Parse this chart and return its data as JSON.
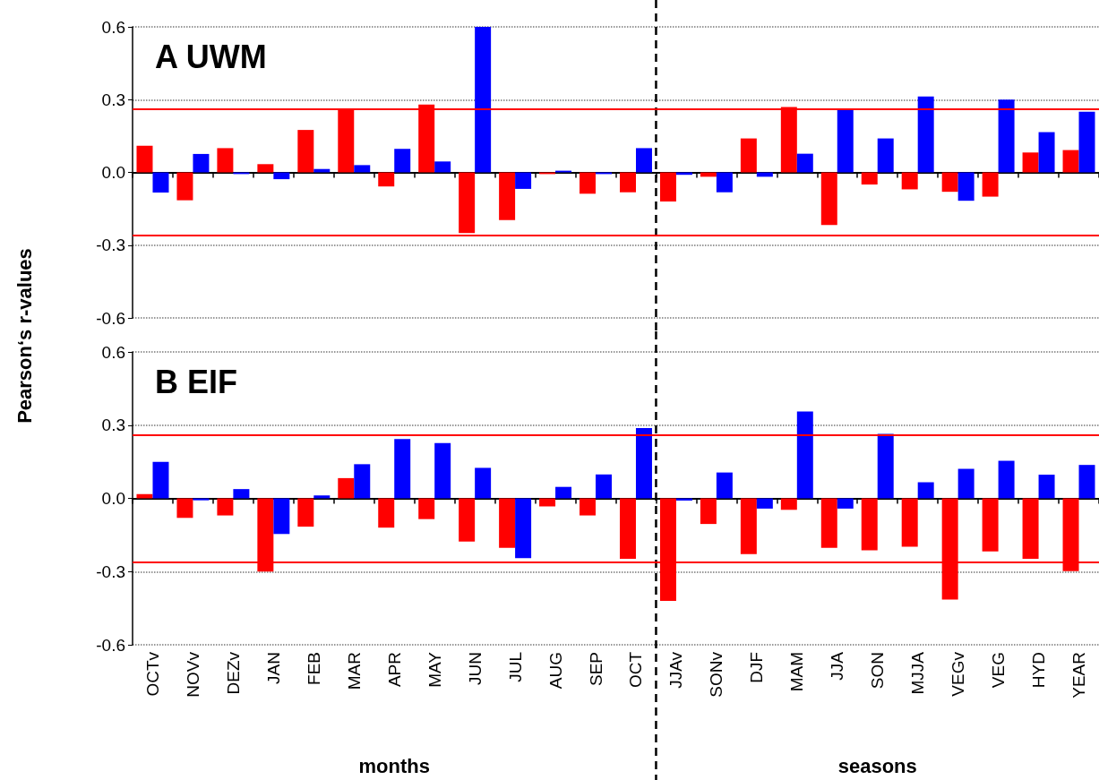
{
  "chart_data": [
    {
      "type": "bar",
      "title": "A UWM",
      "ylabel": "Pearson‘s r-values",
      "tick_labels": "y",
      "grid": "y",
      "categories": [
        "OCTv",
        "NOVv",
        "DEZv",
        "JAN",
        "FEB",
        "MAR",
        "APR",
        "MAY",
        "JUN",
        "JUL",
        "AUG",
        "SEP",
        "OCT",
        "JJAv",
        "SONv",
        "DJF",
        "MAM",
        "JJA",
        "SON",
        "MJJA",
        "VEGv",
        "VEG",
        "HYD",
        "YEAR"
      ],
      "series": [
        {
          "color": "#ff0000",
          "values": [
            0.11,
            -0.115,
            0.1,
            0.034,
            0.175,
            0.263,
            -0.058,
            0.28,
            -0.25,
            -0.197,
            -0.007,
            -0.088,
            -0.082,
            -0.12,
            -0.018,
            0.14,
            0.27,
            -0.217,
            -0.05,
            -0.07,
            -0.08,
            -0.1,
            0.082,
            0.092
          ]
        },
        {
          "color": "#0000ff",
          "values": [
            -0.083,
            0.076,
            -0.007,
            -0.028,
            0.014,
            0.03,
            0.097,
            0.045,
            0.6,
            -0.068,
            0.007,
            -0.007,
            0.1,
            -0.01,
            -0.082,
            -0.018,
            0.077,
            0.262,
            0.14,
            0.313,
            -0.117,
            0.3,
            0.166,
            0.25
          ]
        }
      ],
      "ylim": [
        -0.6,
        0.6
      ],
      "yticks": [
        -0.6,
        -0.3,
        {
          "value": 0,
          "label": "0.0"
        },
        0.3,
        0.6
      ],
      "ref_lines": [
        {
          "axis": "y",
          "value": 0.26,
          "color": "#ff0000",
          "line_style": "solid"
        },
        {
          "axis": "y",
          "value": -0.26,
          "color": "#ff0000",
          "line_style": "solid"
        },
        {
          "axis": "x",
          "value": "JJAv",
          "color": "#000000",
          "line_style": "dashed"
        }
      ]
    },
    {
      "type": "bar",
      "title": "B EIF",
      "grid": "y",
      "categories": [
        "OCTv",
        "NOVv",
        "DEZv",
        "JAN",
        "FEB",
        "MAR",
        "APR",
        "MAY",
        "JUN",
        "JUL",
        "AUG",
        "SEP",
        "OCT",
        "JJAv",
        "SONv",
        "DJF",
        "MAM",
        "JJA",
        "SON",
        "MJJA",
        "VEGv",
        "VEG",
        "HYD",
        "YEAR"
      ],
      "series": [
        {
          "color": "#ff0000",
          "values": [
            0.017,
            -0.08,
            -0.07,
            -0.3,
            -0.116,
            0.083,
            -0.12,
            -0.085,
            -0.177,
            -0.203,
            -0.033,
            -0.07,
            -0.248,
            -0.42,
            -0.105,
            -0.228,
            -0.047,
            -0.203,
            -0.213,
            -0.198,
            -0.415,
            -0.217,
            -0.248,
            -0.298
          ]
        },
        {
          "color": "#0000ff",
          "values": [
            0.15,
            -0.008,
            0.038,
            -0.146,
            0.012,
            0.14,
            0.243,
            0.227,
            0.125,
            -0.245,
            0.047,
            0.098,
            0.288,
            -0.009,
            0.106,
            -0.042,
            0.356,
            -0.042,
            0.264,
            0.066,
            0.121,
            0.154,
            0.097,
            0.137
          ]
        }
      ],
      "ylim": [
        -0.6,
        0.6
      ],
      "yticks": [
        -0.6,
        -0.3,
        {
          "value": 0,
          "label": "0.0"
        },
        0.3,
        0.6
      ],
      "ref_lines": [
        {
          "axis": "y",
          "value": 0.26,
          "color": "#ff0000",
          "line_style": "solid"
        },
        {
          "axis": "y",
          "value": -0.26,
          "color": "#ff0000",
          "line_style": "solid"
        },
        {
          "axis": "x",
          "value": "JJAv",
          "color": "#000000",
          "line_style": "dashed"
        }
      ],
      "annotations": [
        "months",
        "seasons"
      ]
    }
  ]
}
